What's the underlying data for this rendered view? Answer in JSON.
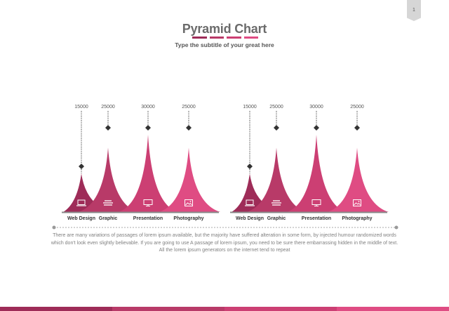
{
  "page": {
    "number": "1"
  },
  "header": {
    "title": "Pyramid Chart",
    "subtitle": "Type the subtitle of your great here"
  },
  "colors": {
    "c1": "#9e2c58",
    "c2": "#b83a68",
    "c3": "#cc3f73",
    "c4": "#df4c83",
    "axis": "#888888",
    "dots": "#333333"
  },
  "chart_data": [
    {
      "type": "bar",
      "categories": [
        "Web Design",
        "Graphic",
        "Presentation",
        "Photography"
      ],
      "values": [
        15000,
        25000,
        30000,
        25000
      ],
      "icons": [
        "laptop-icon",
        "stack-icon",
        "monitor-icon",
        "image-icon"
      ]
    },
    {
      "type": "bar",
      "categories": [
        "Web Design",
        "Graphic",
        "Presentation",
        "Photography"
      ],
      "values": [
        15000,
        25000,
        30000,
        25000
      ],
      "icons": [
        "laptop-icon",
        "stack-icon",
        "monitor-icon",
        "image-icon"
      ]
    }
  ],
  "description": "There are many variations of passages of lorem ipsum available, but the majority have suffered alteration in some form, by injected humour randomized words which don't look even slightly believable. If you are going to use A passage of lorem ipsum, you need to be sure there embarrassing hidden in the middle of text. All the lorem ipsum generators on the internet tend to repeat"
}
